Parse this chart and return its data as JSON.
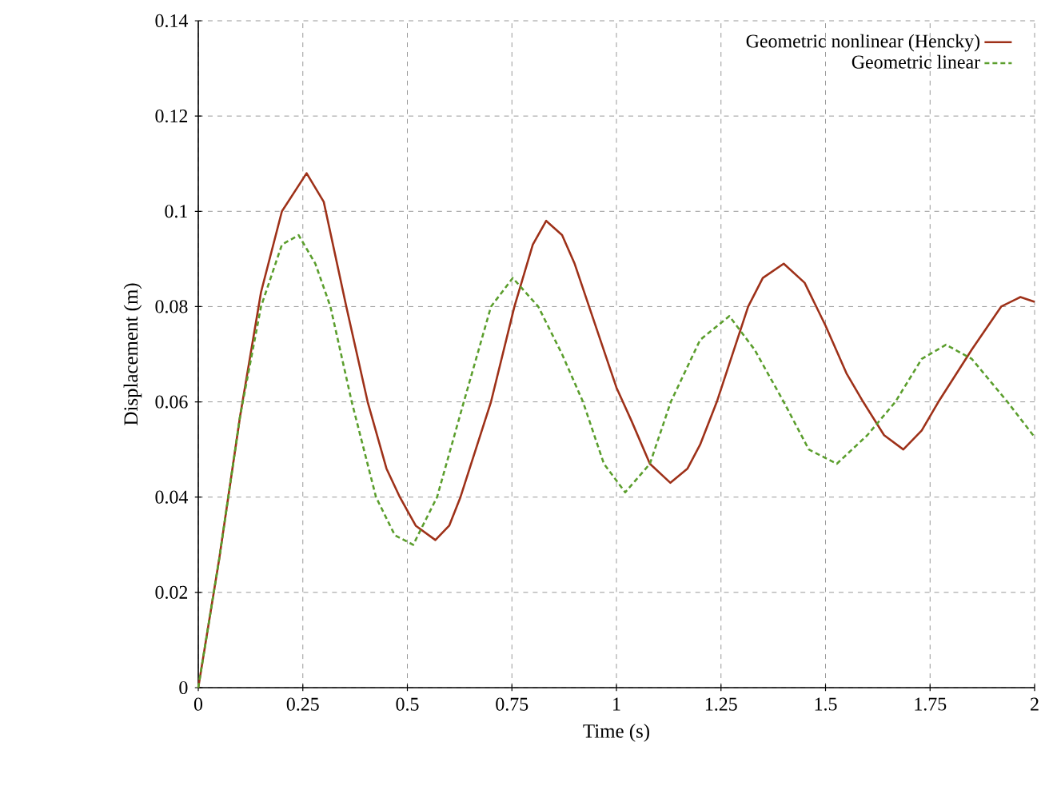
{
  "chart_data": {
    "type": "line",
    "xlabel": "Time (s)",
    "ylabel": "Displacement (m)",
    "xlim": [
      0,
      2
    ],
    "ylim": [
      0,
      0.14
    ],
    "xticks": [
      0,
      0.25,
      0.5,
      0.75,
      1,
      1.25,
      1.5,
      1.75,
      2
    ],
    "yticks": [
      0,
      0.02,
      0.04,
      0.06,
      0.08,
      0.1,
      0.12,
      0.14
    ],
    "grid": true,
    "legend": "top right",
    "marker": "none",
    "series": [
      {
        "name": "Geometric nonlinear (Hencky)",
        "color": "#9e3119",
        "line_style": "solid",
        "x": [
          0,
          0.05,
          0.1,
          0.15,
          0.2,
          0.259,
          0.3,
          0.354,
          0.405,
          0.45,
          0.482,
          0.52,
          0.567,
          0.6,
          0.627,
          0.7,
          0.756,
          0.8,
          0.832,
          0.87,
          0.9,
          0.95,
          1.0,
          1.036,
          1.08,
          1.129,
          1.17,
          1.2,
          1.24,
          1.315,
          1.35,
          1.4,
          1.45,
          1.5,
          1.55,
          1.59,
          1.64,
          1.686,
          1.73,
          1.77,
          1.85,
          1.92,
          1.966,
          2.0
        ],
        "values": [
          0,
          0.027,
          0.057,
          0.083,
          0.1,
          0.108,
          0.102,
          0.08,
          0.06,
          0.046,
          0.04,
          0.034,
          0.031,
          0.034,
          0.04,
          0.06,
          0.08,
          0.093,
          0.098,
          0.095,
          0.089,
          0.076,
          0.063,
          0.056,
          0.047,
          0.043,
          0.046,
          0.051,
          0.06,
          0.08,
          0.086,
          0.089,
          0.085,
          0.076,
          0.066,
          0.06,
          0.053,
          0.05,
          0.054,
          0.06,
          0.071,
          0.08,
          0.082,
          0.081
        ]
      },
      {
        "name": "Geometric linear",
        "color": "#5b9e2d",
        "line_style": "dashed",
        "x": [
          0,
          0.05,
          0.1,
          0.15,
          0.2,
          0.24,
          0.28,
          0.316,
          0.367,
          0.425,
          0.47,
          0.514,
          0.571,
          0.635,
          0.7,
          0.752,
          0.813,
          0.87,
          0.92,
          0.97,
          1.021,
          1.08,
          1.13,
          1.2,
          1.27,
          1.33,
          1.4,
          1.46,
          1.527,
          1.6,
          1.667,
          1.73,
          1.788,
          1.85,
          1.935,
          2.0
        ],
        "values": [
          0,
          0.027,
          0.057,
          0.08,
          0.093,
          0.095,
          0.089,
          0.08,
          0.06,
          0.04,
          0.032,
          0.03,
          0.04,
          0.06,
          0.08,
          0.086,
          0.08,
          0.07,
          0.06,
          0.047,
          0.041,
          0.047,
          0.06,
          0.073,
          0.078,
          0.071,
          0.06,
          0.05,
          0.047,
          0.053,
          0.06,
          0.069,
          0.072,
          0.069,
          0.06,
          0.0526
        ]
      }
    ]
  }
}
